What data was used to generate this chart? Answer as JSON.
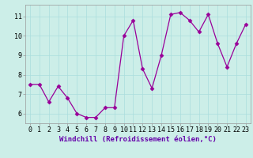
{
  "x": [
    0,
    1,
    2,
    3,
    4,
    5,
    6,
    7,
    8,
    9,
    10,
    11,
    12,
    13,
    14,
    15,
    16,
    17,
    18,
    19,
    20,
    21,
    22,
    23
  ],
  "y": [
    7.5,
    7.5,
    6.6,
    7.4,
    6.8,
    6.0,
    5.8,
    5.8,
    6.3,
    6.3,
    10.0,
    10.8,
    8.3,
    7.3,
    9.0,
    11.1,
    11.2,
    10.8,
    10.2,
    11.1,
    9.6,
    8.4,
    9.6,
    10.6
  ],
  "line_color": "#990099",
  "marker": "D",
  "markersize": 2.5,
  "linewidth": 0.9,
  "bg_color": "#cceee8",
  "grid_color": "#aadddd",
  "xlabel": "Windchill (Refroidissement éolien,°C)",
  "xlabel_fontsize": 6.5,
  "ylabel_ticks": [
    6,
    7,
    8,
    9,
    10,
    11
  ],
  "xlim": [
    -0.5,
    23.5
  ],
  "ylim": [
    5.5,
    11.6
  ],
  "tick_fontsize": 6,
  "title": ""
}
